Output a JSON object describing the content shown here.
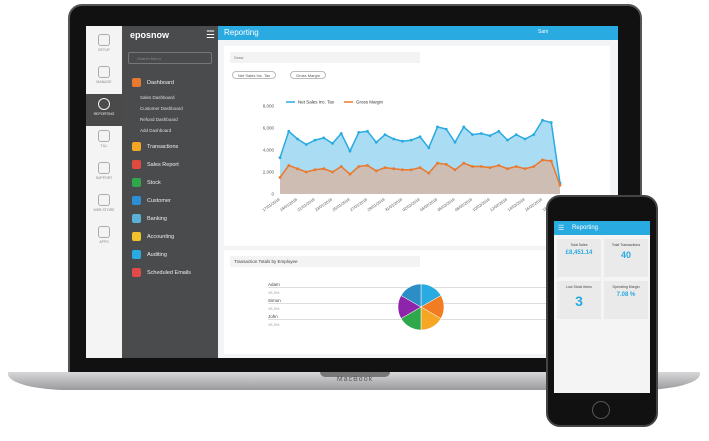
{
  "device": {
    "laptop_brand": "MacBook"
  },
  "rail": [
    {
      "label": "SETUP"
    },
    {
      "label": "MANAGE"
    },
    {
      "label": "REPORTING",
      "active": true
    },
    {
      "label": "TILL"
    },
    {
      "label": "SUPPORT"
    },
    {
      "label": "WEB STORE"
    },
    {
      "label": "APPS"
    }
  ],
  "menu": {
    "logo": "eposnow",
    "search_placeholder": "Search Menu",
    "items": [
      {
        "label": "Dashboard",
        "color": "#e8792e"
      },
      {
        "label": "Transactions",
        "color": "#f5a623"
      },
      {
        "label": "Sales Report",
        "color": "#e04a3f"
      },
      {
        "label": "Stock",
        "color": "#2ea84a"
      },
      {
        "label": "Customer",
        "color": "#2c8fd6"
      },
      {
        "label": "Banking",
        "color": "#5ab0d6"
      },
      {
        "label": "Accounting",
        "color": "#f2c12e"
      },
      {
        "label": "Auditing",
        "color": "#29aae1"
      },
      {
        "label": "Scheduled Emails",
        "color": "#e04a4a"
      }
    ],
    "subitems": [
      "Sales Dashboard",
      "Customer Dashboard",
      "Refund Dashboard",
      "Add Dashboard"
    ]
  },
  "header": {
    "title": "Reporting",
    "user": "Sam"
  },
  "card1": {
    "select": "Draw",
    "chips": [
      "Net Sales Inc. Tax",
      "Gross Margin"
    ]
  },
  "chart_data": {
    "type": "area",
    "ylim": [
      0,
      8000
    ],
    "yticks": [
      0,
      2000,
      4000,
      6000,
      8000
    ],
    "ytick_labels": [
      "0",
      "2,000",
      "4,000",
      "6,000",
      "8,000"
    ],
    "legend_placement": "top-left",
    "x": [
      "17/01/2018",
      "18/01/2018",
      "19/01/2018",
      "20/01/2018",
      "21/01/2018",
      "22/01/2018",
      "23/01/2018",
      "24/01/2018",
      "25/01/2018",
      "26/01/2018",
      "27/01/2018",
      "28/01/2018",
      "29/01/2018",
      "30/01/2018",
      "31/01/2018",
      "01/02/2018",
      "02/02/2018",
      "03/02/2018",
      "04/02/2018",
      "05/02/2018",
      "06/02/2018",
      "07/02/2018",
      "08/02/2018",
      "09/02/2018",
      "10/02/2018",
      "11/02/2018",
      "12/02/2018",
      "13/02/2018",
      "14/02/2018",
      "15/02/2018",
      "16/02/2018",
      "17/02/2018",
      "18/02/2018"
    ],
    "series": [
      {
        "name": "Net Sales Inc. Tax",
        "color": "#29aae1",
        "fill": "#aadcf3",
        "values": [
          3300,
          5700,
          5000,
          4500,
          4900,
          5100,
          4600,
          5500,
          3900,
          5600,
          5700,
          4700,
          5400,
          5000,
          4800,
          4900,
          5200,
          4200,
          6100,
          5900,
          4700,
          6100,
          5400,
          5500,
          5300,
          5700,
          4900,
          5400,
          5000,
          5400,
          6700,
          6500,
          1000
        ]
      },
      {
        "name": "Gross Margin",
        "color": "#e8792e",
        "fill": "#cdbdb2",
        "values": [
          1500,
          2600,
          2300,
          2000,
          2200,
          2300,
          2000,
          2500,
          1800,
          2500,
          2600,
          2100,
          2400,
          2300,
          2200,
          2200,
          2400,
          1900,
          2800,
          2700,
          2200,
          2800,
          2500,
          2500,
          2400,
          2600,
          2300,
          2500,
          2300,
          2500,
          3100,
          3000,
          800
        ]
      }
    ]
  },
  "card2": {
    "select": "Transaction Totals by Employee",
    "employees": [
      {
        "name": "Adam",
        "pct": "15.3%"
      },
      {
        "name": "Simon",
        "pct": "15.3%"
      },
      {
        "name": "John",
        "pct": "15.3%"
      }
    ],
    "pie_colors": [
      "#29aae1",
      "#f37b22",
      "#f5a623",
      "#2ea84a",
      "#8e24aa",
      "#2b8fc6"
    ]
  },
  "phone": {
    "title": "Reporting",
    "tiles": [
      {
        "label": "Total Sales",
        "value": "£8,451.14"
      },
      {
        "label": "Total Transactions",
        "value": "40"
      },
      {
        "label": "Low Stock Items",
        "value": "3"
      },
      {
        "label": "Operating Margin",
        "value": "7.08 %"
      }
    ]
  }
}
